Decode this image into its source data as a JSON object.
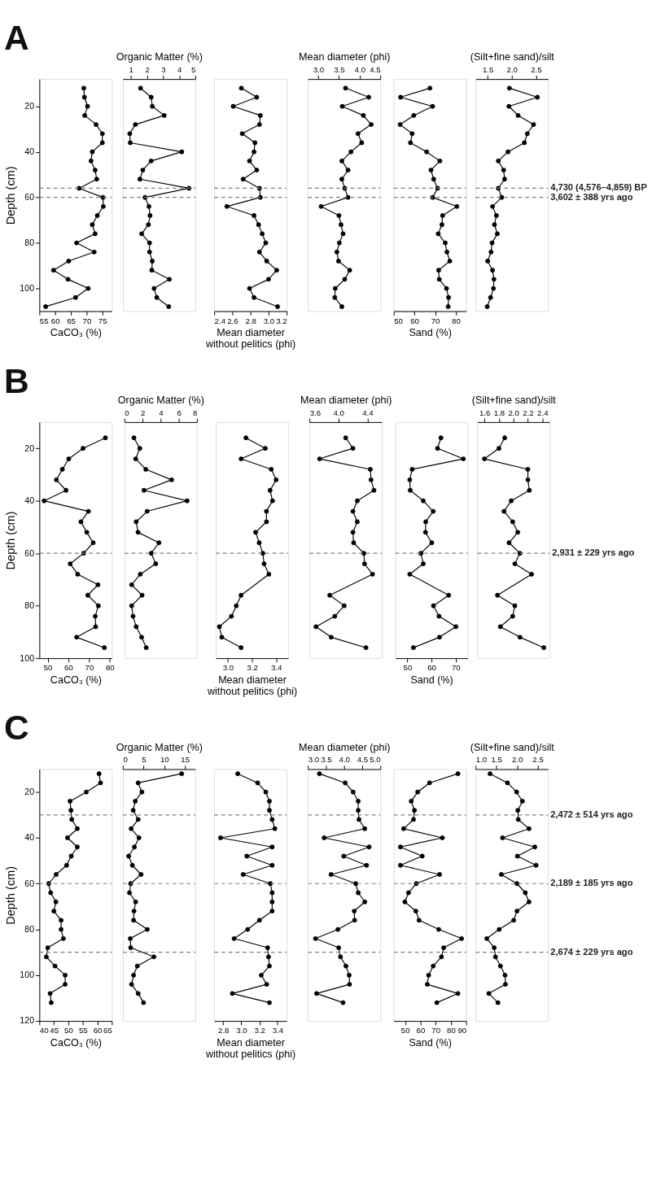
{
  "chart_data": [
    {
      "type": "line",
      "title": "A",
      "ylabel": "Depth (cm)",
      "xlabel": "CaCO₃ (%)",
      "xlim": [
        55,
        78
      ],
      "xticks": [
        55,
        60,
        65,
        70,
        75
      ],
      "ylim": [
        110,
        8
      ],
      "yticks": [
        20,
        40,
        60,
        80,
        100
      ],
      "marker": "circle",
      "line_style": "solid",
      "grid": false,
      "ref_lines": [
        {
          "axis": "y",
          "value": 56,
          "color": "#808080",
          "line_style": "dashed"
        },
        {
          "axis": "y",
          "value": 60,
          "color": "#808080",
          "line_style": "dashed"
        }
      ],
      "series": [
        {
          "color": "#000000",
          "x": [
            69.1,
            69.3,
            70.3,
            69.4,
            73.0,
            75.0,
            75.0,
            71.8,
            71.4,
            72.7,
            73.2,
            67.6,
            75.2,
            75.3,
            73.4,
            71.8,
            72.7,
            66.8,
            72.4,
            64.3,
            59.5,
            64.1,
            70.5,
            66.5,
            57.0
          ],
          "values": [
            12,
            16,
            20,
            24,
            28,
            32,
            36,
            40,
            44,
            48,
            52,
            56,
            60,
            64,
            68,
            72,
            76,
            80,
            84,
            88,
            92,
            96,
            100,
            104,
            108
          ]
        }
      ]
    },
    {
      "type": "line",
      "xlabel": "Organic Matter (%)",
      "xlim": [
        0.5,
        5
      ],
      "xticks": [
        1,
        2,
        3,
        4,
        5
      ],
      "ylim": [
        110,
        8
      ],
      "tick_labels": "x",
      "marker": "circle",
      "line_style": "solid",
      "grid": false,
      "ref_lines": [
        {
          "axis": "y",
          "value": 56,
          "color": "#808080",
          "line_style": "dashed"
        },
        {
          "axis": "y",
          "value": 60,
          "color": "#808080",
          "line_style": "dashed"
        }
      ],
      "series": [
        {
          "color": "#000000",
          "x": [
            1.6,
            2.26,
            2.33,
            3.07,
            1.28,
            0.93,
            0.96,
            4.16,
            2.26,
            1.74,
            1.56,
            4.61,
            1.88,
            2.12,
            2.19,
            2.09,
            1.67,
            2.16,
            2.16,
            2.33,
            2.3,
            3.39,
            2.44,
            2.61,
            3.35
          ],
          "values": [
            12,
            16,
            20,
            24,
            28,
            32,
            36,
            40,
            44,
            48,
            52,
            56,
            60,
            64,
            68,
            72,
            76,
            80,
            84,
            88,
            92,
            96,
            100,
            104,
            108
          ]
        }
      ]
    },
    {
      "type": "line",
      "xlabel": "Mean diameter without pelitics (phi)",
      "xlim": [
        2.4,
        3.2
      ],
      "xticks": [
        2.4,
        2.6,
        2.8,
        {
          "value": 3,
          "label": "3.0"
        },
        3.2
      ],
      "ylim": [
        110,
        8
      ],
      "tick_labels": "x",
      "marker": "circle",
      "line_style": "solid",
      "grid": false,
      "ref_lines": [
        {
          "axis": "y",
          "value": 56,
          "color": "#808080",
          "line_style": "dashed"
        },
        {
          "axis": "y",
          "value": 60,
          "color": "#808080",
          "line_style": "dashed"
        }
      ],
      "series": [
        {
          "color": "#000000",
          "x": [
            2.7,
            2.87,
            2.61,
            2.91,
            2.9,
            2.71,
            2.85,
            2.84,
            2.79,
            2.87,
            2.72,
            2.9,
            2.91,
            2.54,
            2.84,
            2.89,
            2.93,
            2.97,
            2.9,
            2.98,
            3.09,
            3.0,
            2.79,
            2.84,
            3.1
          ],
          "values": [
            12,
            16,
            20,
            24,
            28,
            32,
            36,
            40,
            44,
            48,
            52,
            56,
            60,
            64,
            68,
            72,
            76,
            80,
            84,
            88,
            92,
            96,
            100,
            104,
            108
          ]
        }
      ]
    },
    {
      "type": "line",
      "xlabel": "Mean diameter (phi)",
      "xlim": [
        2.75,
        4.5
      ],
      "xticks": [
        {
          "value": 3,
          "label": "3.0"
        },
        3.5,
        {
          "value": 4,
          "label": "4.0"
        },
        4.5
      ],
      "ylim": [
        110,
        8
      ],
      "tick_labels": "x",
      "marker": "circle",
      "line_style": "solid",
      "grid": false,
      "ref_lines": [
        {
          "axis": "y",
          "value": 56,
          "color": "#808080",
          "line_style": "dashed"
        },
        {
          "axis": "y",
          "value": 60,
          "color": "#808080",
          "line_style": "dashed"
        }
      ],
      "series": [
        {
          "color": "#000000",
          "x": [
            3.66,
            4.22,
            3.58,
            4.09,
            4.28,
            3.96,
            4.05,
            3.79,
            3.57,
            3.72,
            3.57,
            3.64,
            3.72,
            3.07,
            3.5,
            3.55,
            3.6,
            3.51,
            3.45,
            3.49,
            3.76,
            3.64,
            3.41,
            3.4,
            3.57
          ],
          "values": [
            12,
            16,
            20,
            24,
            28,
            32,
            36,
            40,
            44,
            48,
            52,
            56,
            60,
            64,
            68,
            72,
            76,
            80,
            84,
            88,
            92,
            96,
            100,
            104,
            108
          ]
        }
      ]
    },
    {
      "type": "line",
      "xlabel": "Sand (%)",
      "xlim": [
        50,
        85
      ],
      "xticks": [
        50,
        60,
        70,
        80
      ],
      "ylim": [
        110,
        8
      ],
      "tick_labels": "x",
      "marker": "circle",
      "line_style": "solid",
      "grid": false,
      "ref_lines": [
        {
          "axis": "y",
          "value": 56,
          "color": "#808080",
          "line_style": "dashed"
        },
        {
          "axis": "y",
          "value": 60,
          "color": "#808080",
          "line_style": "dashed"
        }
      ],
      "series": [
        {
          "color": "#000000",
          "x": [
            67.5,
            53.3,
            68.8,
            59.7,
            53.1,
            58.9,
            58.1,
            65.9,
            72.3,
            68.0,
            69.3,
            71.2,
            68.8,
            80.5,
            73.6,
            73.3,
            71.5,
            74.9,
            75.7,
            77.1,
            71.7,
            72.0,
            75.5,
            76.5,
            76.3
          ],
          "values": [
            12,
            16,
            20,
            24,
            28,
            32,
            36,
            40,
            44,
            48,
            52,
            56,
            60,
            64,
            68,
            72,
            76,
            80,
            84,
            88,
            92,
            96,
            100,
            104,
            108
          ]
        }
      ]
    },
    {
      "type": "line",
      "xlabel": "(Silt+fine sand)/silt",
      "xlim": [
        1.25,
        2.75
      ],
      "xticks": [
        1.5,
        {
          "value": 2,
          "label": "2.0"
        },
        2.5
      ],
      "ylim": [
        110,
        8
      ],
      "tick_labels": "x",
      "marker": "circle",
      "line_style": "solid",
      "grid": false,
      "ref_lines": [
        {
          "axis": "y",
          "value": 56,
          "label": "4,730 (4,576–4,859) BP",
          "color": "#808080",
          "line_style": "dashed"
        },
        {
          "axis": "y",
          "value": 60,
          "label": "3,602 ± 388 yrs ago",
          "color": "#808080",
          "line_style": "dashed"
        }
      ],
      "series": [
        {
          "color": "#000000",
          "x": [
            1.95,
            2.53,
            1.94,
            2.13,
            2.45,
            2.32,
            2.26,
            1.92,
            1.72,
            1.83,
            1.85,
            1.72,
            1.79,
            1.6,
            1.68,
            1.64,
            1.7,
            1.59,
            1.57,
            1.5,
            1.6,
            1.63,
            1.62,
            1.56,
            1.49
          ],
          "values": [
            12,
            16,
            20,
            24,
            28,
            32,
            36,
            40,
            44,
            48,
            52,
            56,
            60,
            64,
            68,
            72,
            76,
            80,
            84,
            88,
            92,
            96,
            100,
            104,
            108
          ]
        }
      ]
    },
    {
      "type": "line",
      "title": "B",
      "ylabel": "Depth (cm)",
      "xlabel": "CaCO₃ (%)",
      "xlim": [
        46,
        81
      ],
      "xticks": [
        50,
        60,
        70,
        80
      ],
      "ylim": [
        100,
        10
      ],
      "yticks": [
        20,
        40,
        60,
        80,
        100
      ],
      "marker": "circle",
      "line_style": "solid",
      "grid": false,
      "ref_lines": [
        {
          "axis": "y",
          "value": 60,
          "color": "#808080",
          "line_style": "dashed"
        }
      ],
      "series": [
        {
          "color": "#000000",
          "x": [
            77.9,
            67.1,
            60.2,
            57.1,
            54.2,
            58.9,
            48.3,
            69.7,
            66.1,
            68.9,
            72.0,
            67.4,
            60.9,
            64.5,
            74.3,
            69.4,
            74.5,
            73.0,
            73.2,
            64.0,
            77.4
          ],
          "values": [
            16,
            20,
            24,
            28,
            32,
            36,
            40,
            44,
            48,
            52,
            56,
            60,
            64,
            68,
            72,
            76,
            80,
            84,
            88,
            92,
            96
          ]
        }
      ]
    },
    {
      "type": "line",
      "xlabel": "Organic Matter (%)",
      "xlim": [
        0,
        8
      ],
      "xticks": [
        0,
        2,
        4,
        6,
        8
      ],
      "ylim": [
        100,
        10
      ],
      "tick_labels": "x",
      "marker": "circle",
      "line_style": "solid",
      "grid": false,
      "ref_lines": [
        {
          "axis": "y",
          "value": 60,
          "color": "#808080",
          "line_style": "dashed"
        }
      ],
      "series": [
        {
          "color": "#000000",
          "x": [
            1.05,
            1.7,
            1.25,
            2.36,
            5.21,
            2.16,
            6.92,
            2.51,
            1.3,
            1.5,
            3.81,
            2.96,
            3.46,
            1.75,
            0.8,
            1.95,
            0.8,
            0.95,
            1.3,
            1.9,
            2.41
          ],
          "values": [
            16,
            20,
            24,
            28,
            32,
            36,
            40,
            44,
            48,
            52,
            56,
            60,
            64,
            68,
            72,
            76,
            80,
            84,
            88,
            92,
            96
          ]
        }
      ]
    },
    {
      "type": "line",
      "xlabel": "Mean diameter without pelitics (phi)",
      "xlim": [
        2.9,
        3.5
      ],
      "xticks": [
        {
          "value": 3,
          "label": "3.0"
        },
        3.2,
        3.4
      ],
      "ylim": [
        100,
        10
      ],
      "tick_labels": "x",
      "marker": "circle",
      "line_style": "solid",
      "grid": false,
      "ref_lines": [
        {
          "axis": "y",
          "value": 60,
          "color": "#808080",
          "line_style": "dashed"
        }
      ],
      "series": [
        {
          "color": "#000000",
          "x": [
            3.15,
            3.31,
            3.11,
            3.36,
            3.4,
            3.35,
            3.37,
            3.32,
            3.32,
            3.23,
            3.26,
            3.29,
            3.3,
            3.34,
            3.11,
            3.07,
            3.03,
            2.93,
            2.95,
            3.11
          ],
          "values": [
            16,
            20,
            24,
            28,
            32,
            36,
            40,
            44,
            48,
            52,
            56,
            60,
            64,
            68,
            76,
            80,
            84,
            88,
            92,
            96
          ]
        }
      ]
    },
    {
      "type": "line",
      "xlabel": "Mean diameter (phi)",
      "xlim": [
        3.6,
        4.6
      ],
      "xticks": [
        3.6,
        {
          "value": 4,
          "label": "4.0"
        },
        4.4
      ],
      "ylim": [
        100,
        10
      ],
      "tick_labels": "x",
      "marker": "circle",
      "line_style": "solid",
      "grid": false,
      "ref_lines": [
        {
          "axis": "y",
          "value": 60,
          "color": "#808080",
          "line_style": "dashed"
        }
      ],
      "series": [
        {
          "color": "#000000",
          "x": [
            4.1,
            4.2,
            3.74,
            4.44,
            4.45,
            4.49,
            4.26,
            4.2,
            4.26,
            4.2,
            4.21,
            4.35,
            4.36,
            4.47,
            3.88,
            4.08,
            3.95,
            3.69,
            3.9,
            4.38
          ],
          "values": [
            16,
            20,
            24,
            28,
            32,
            36,
            40,
            44,
            48,
            52,
            56,
            60,
            64,
            68,
            76,
            80,
            84,
            88,
            92,
            96
          ]
        }
      ]
    },
    {
      "type": "line",
      "xlabel": "Sand (%)",
      "xlim": [
        45,
        75
      ],
      "xticks": [
        50,
        60,
        70
      ],
      "ylim": [
        100,
        10
      ],
      "tick_labels": "x",
      "marker": "circle",
      "line_style": "solid",
      "grid": false,
      "ref_lines": [
        {
          "axis": "y",
          "value": 60,
          "color": "#808080",
          "line_style": "dashed"
        }
      ],
      "series": [
        {
          "color": "#000000",
          "x": [
            63.9,
            62.5,
            73.2,
            52.0,
            51.0,
            51.2,
            56.6,
            60.7,
            57.6,
            57.5,
            60.1,
            55.6,
            56.6,
            51.0,
            67.1,
            60.8,
            63.1,
            70.1,
            63.3,
            52.5
          ],
          "values": [
            16,
            20,
            24,
            28,
            32,
            36,
            40,
            44,
            48,
            52,
            56,
            60,
            64,
            68,
            76,
            80,
            84,
            88,
            92,
            96
          ]
        }
      ]
    },
    {
      "type": "line",
      "xlabel": "(Silt+fine sand)/silt",
      "xlim": [
        1.5,
        2.5
      ],
      "xticks": [
        1.6,
        1.8,
        {
          "value": 2,
          "label": "2.0"
        },
        2.2,
        2.4
      ],
      "ylim": [
        100,
        10
      ],
      "tick_labels": "x",
      "marker": "circle",
      "line_style": "solid",
      "grid": false,
      "ref_lines": [
        {
          "axis": "y",
          "value": 60,
          "label": "2,931 ± 229 yrs ago",
          "color": "#808080",
          "line_style": "dashed"
        }
      ],
      "series": [
        {
          "color": "#000000",
          "x": [
            1.88,
            1.8,
            1.6,
            2.2,
            2.2,
            2.22,
            1.97,
            1.87,
            1.99,
            2.06,
            1.94,
            2.09,
            2.02,
            2.25,
            1.78,
            2.02,
            1.99,
            1.82,
            2.09,
            2.42
          ],
          "values": [
            16,
            20,
            24,
            28,
            32,
            36,
            40,
            44,
            48,
            52,
            56,
            60,
            64,
            68,
            76,
            80,
            84,
            88,
            92,
            96
          ]
        }
      ]
    },
    {
      "type": "line",
      "title": "C",
      "ylabel": "Depth (cm)",
      "xlabel": "CaCO₃ (%)",
      "xlim": [
        40,
        65
      ],
      "xticks": [
        40,
        45,
        50,
        55,
        60,
        65
      ],
      "ylim": [
        120,
        10
      ],
      "yticks": [
        20,
        40,
        60,
        80,
        100,
        120
      ],
      "marker": "circle",
      "line_style": "solid",
      "grid": false,
      "ref_lines": [
        {
          "axis": "y",
          "value": 30,
          "color": "#808080",
          "line_style": "dashed"
        },
        {
          "axis": "y",
          "value": 60,
          "color": "#808080",
          "line_style": "dashed"
        },
        {
          "axis": "y",
          "value": 90,
          "color": "#808080",
          "line_style": "dashed"
        }
      ],
      "series": [
        {
          "color": "#000000",
          "x": [
            60.6,
            61.1,
            56.2,
            50.6,
            50.9,
            51.2,
            53.1,
            49.7,
            53.1,
            51.0,
            49.4,
            45.8,
            43.2,
            43.9,
            45.7,
            45.0,
            47.5,
            47.5,
            48.3,
            42.9,
            42.4,
            45.4,
            48.9,
            48.9,
            43.7,
            44.1
          ],
          "values": [
            12,
            16,
            20,
            24,
            28,
            32,
            36,
            40,
            44,
            48,
            52,
            56,
            60,
            64,
            68,
            72,
            76,
            80,
            84,
            88,
            92,
            96,
            100,
            104,
            108,
            112
          ]
        }
      ]
    },
    {
      "type": "line",
      "xlabel": "Organic Matter (%)",
      "xlim": [
        0,
        17.5
      ],
      "xticks": [
        0,
        5,
        10,
        15
      ],
      "ylim": [
        120,
        10
      ],
      "tick_labels": "x",
      "marker": "circle",
      "line_style": "solid",
      "grid": false,
      "ref_lines": [
        {
          "axis": "y",
          "value": 30,
          "color": "#808080",
          "line_style": "dashed"
        },
        {
          "axis": "y",
          "value": 60,
          "color": "#808080",
          "line_style": "dashed"
        },
        {
          "axis": "y",
          "value": 90,
          "color": "#808080",
          "line_style": "dashed"
        }
      ],
      "series": [
        {
          "color": "#000000",
          "x": [
            14.2,
            3.7,
            4.6,
            3.0,
            2.5,
            3.7,
            2.0,
            3.9,
            2.8,
            1.4,
            2.3,
            4.4,
            1.9,
            1.6,
            3.1,
            2.7,
            2.6,
            5.9,
            1.8,
            1.9,
            7.5,
            3.5,
            2.6,
            2.1,
            3.7,
            5.0
          ],
          "values": [
            12,
            16,
            20,
            24,
            28,
            32,
            36,
            40,
            44,
            48,
            52,
            56,
            60,
            64,
            68,
            72,
            76,
            80,
            84,
            88,
            92,
            96,
            100,
            104,
            108,
            112
          ]
        }
      ]
    },
    {
      "type": "line",
      "xlabel": "Mean diameter without pelitics (phi)",
      "xlim": [
        2.7,
        3.5
      ],
      "xticks": [
        2.8,
        {
          "value": 3,
          "label": "3.0"
        },
        3.2,
        3.4
      ],
      "ylim": [
        120,
        10
      ],
      "tick_labels": "x",
      "marker": "circle",
      "line_style": "solid",
      "grid": false,
      "ref_lines": [
        {
          "axis": "y",
          "value": 30,
          "color": "#808080",
          "line_style": "dashed"
        },
        {
          "axis": "y",
          "value": 60,
          "color": "#808080",
          "line_style": "dashed"
        },
        {
          "axis": "y",
          "value": 90,
          "color": "#808080",
          "line_style": "dashed"
        }
      ],
      "series": [
        {
          "color": "#000000",
          "x": [
            2.96,
            3.18,
            3.27,
            3.31,
            3.31,
            3.34,
            3.37,
            2.77,
            3.34,
            3.06,
            3.34,
            3.02,
            3.32,
            3.34,
            3.34,
            3.34,
            3.2,
            3.07,
            2.92,
            3.29,
            3.3,
            3.31,
            3.22,
            3.28,
            2.9,
            3.31
          ],
          "values": [
            12,
            16,
            20,
            24,
            28,
            32,
            36,
            40,
            44,
            48,
            52,
            56,
            60,
            64,
            68,
            72,
            76,
            80,
            84,
            88,
            92,
            96,
            100,
            104,
            108,
            112
          ]
        }
      ]
    },
    {
      "type": "line",
      "xlabel": "Mean diameter (phi)",
      "xlim": [
        3,
        5
      ],
      "xticks": [
        {
          "value": 3,
          "label": "3.0"
        },
        3.5,
        {
          "value": 4,
          "label": "4.0"
        },
        4.5,
        {
          "value": 5,
          "label": "5.0"
        }
      ],
      "ylim": [
        120,
        10
      ],
      "tick_labels": "x",
      "marker": "circle",
      "line_style": "solid",
      "grid": false,
      "ref_lines": [
        {
          "axis": "y",
          "value": 30,
          "color": "#808080",
          "line_style": "dashed"
        },
        {
          "axis": "y",
          "value": 60,
          "color": "#808080",
          "line_style": "dashed"
        },
        {
          "axis": "y",
          "value": 90,
          "color": "#808080",
          "line_style": "dashed"
        }
      ],
      "series": [
        {
          "color": "#000000",
          "x": [
            3.32,
            4.03,
            4.25,
            4.39,
            4.39,
            4.41,
            4.57,
            3.45,
            4.69,
            3.99,
            4.62,
            3.64,
            4.32,
            4.39,
            4.57,
            4.28,
            4.29,
            3.83,
            3.21,
            3.85,
            3.9,
            4.05,
            4.14,
            4.15,
            3.24,
            3.97
          ],
          "values": [
            12,
            16,
            20,
            24,
            28,
            32,
            36,
            40,
            44,
            48,
            52,
            56,
            60,
            64,
            68,
            72,
            76,
            80,
            84,
            88,
            92,
            96,
            100,
            104,
            108,
            112
          ]
        }
      ]
    },
    {
      "type": "line",
      "xlabel": "Sand (%)",
      "xlim": [
        42.5,
        90
      ],
      "xticks": [
        50,
        60,
        70,
        80,
        90
      ],
      "ylim": [
        120,
        10
      ],
      "tick_labels": "x",
      "marker": "circle",
      "line_style": "solid",
      "grid": false,
      "ref_lines": [
        {
          "axis": "y",
          "value": 30,
          "color": "#808080",
          "line_style": "dashed"
        },
        {
          "axis": "y",
          "value": 60,
          "color": "#808080",
          "line_style": "dashed"
        },
        {
          "axis": "y",
          "value": 90,
          "color": "#808080",
          "line_style": "dashed"
        }
      ],
      "series": [
        {
          "color": "#000000",
          "x": [
            84.6,
            66.0,
            58.2,
            54.0,
            56.1,
            55.5,
            49.0,
            74.4,
            46.9,
            61.2,
            46.9,
            72.6,
            57.3,
            52.2,
            49.8,
            57.0,
            59.1,
            72.0,
            87.0,
            75.3,
            73.8,
            68.4,
            65.4,
            64.5,
            84.6,
            70.8
          ],
          "values": [
            12,
            16,
            20,
            24,
            28,
            32,
            36,
            40,
            44,
            48,
            52,
            56,
            60,
            64,
            68,
            72,
            76,
            80,
            84,
            88,
            92,
            96,
            100,
            104,
            108,
            112
          ]
        }
      ]
    },
    {
      "type": "line",
      "xlabel": "(Silt+fine sand)/silt",
      "xlim": [
        1,
        2.75
      ],
      "xticks": [
        {
          "value": 1,
          "label": "1.0"
        },
        1.5,
        {
          "value": 2,
          "label": "2.0"
        },
        2.5
      ],
      "ylim": [
        120,
        10
      ],
      "tick_labels": "x",
      "marker": "circle",
      "line_style": "solid",
      "grid": false,
      "ref_lines": [
        {
          "axis": "y",
          "value": 30,
          "label": "2,472 ± 514 yrs ago",
          "color": "#808080",
          "line_style": "dashed"
        },
        {
          "axis": "y",
          "value": 60,
          "label": "2,189 ± 185 yrs ago",
          "color": "#808080",
          "line_style": "dashed"
        },
        {
          "axis": "y",
          "value": 90,
          "label": "2,674 ± 229 yrs ago",
          "color": "#808080",
          "line_style": "dashed"
        }
      ],
      "series": [
        {
          "color": "#000000",
          "x": [
            1.35,
            1.77,
            1.99,
            2.13,
            2.02,
            2.03,
            2.29,
            1.65,
            2.43,
            2.01,
            2.46,
            1.62,
            2.0,
            2.2,
            2.29,
            2.0,
            1.92,
            1.57,
            1.27,
            1.45,
            1.48,
            1.6,
            1.71,
            1.72,
            1.32,
            1.54
          ],
          "values": [
            12,
            16,
            20,
            24,
            28,
            32,
            36,
            40,
            44,
            48,
            52,
            56,
            60,
            64,
            68,
            72,
            76,
            80,
            84,
            88,
            92,
            96,
            100,
            104,
            108,
            112
          ]
        }
      ]
    }
  ]
}
